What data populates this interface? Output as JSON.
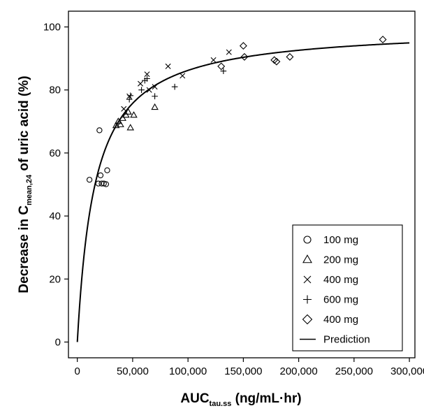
{
  "chart_data": {
    "type": "scatter",
    "title": "",
    "xlabel": {
      "main": "AUC",
      "sub": "tau.ss",
      "rest": " (ng/mL·hr)"
    },
    "ylabel": {
      "pre": "Decrease in C",
      "sub": "mean,24",
      "post": " of uric acid (%)"
    },
    "xlim": [
      -8000,
      305000
    ],
    "ylim": [
      -5,
      105
    ],
    "xticks": [
      0,
      50000,
      100000,
      150000,
      200000,
      250000,
      300000
    ],
    "xtick_labels": [
      "0",
      "50,000",
      "100,000",
      "150,000",
      "200,000",
      "250,000",
      "300,000"
    ],
    "yticks": [
      0,
      20,
      40,
      60,
      80,
      100
    ],
    "ytick_labels": [
      "0",
      "20",
      "40",
      "60",
      "80",
      "100"
    ],
    "grid": false,
    "legend_position": "bottom-right",
    "series": [
      {
        "name": "100 mg",
        "marker": "circle",
        "x": [
          11000,
          19000,
          20000,
          21000,
          22000,
          24000,
          26000,
          27000
        ],
        "y": [
          51.5,
          50.3,
          67.2,
          52.9,
          50.3,
          50.3,
          50.1,
          54.5
        ]
      },
      {
        "name": "200 mg",
        "marker": "triangle",
        "x": [
          35000,
          37000,
          39000,
          41000,
          44000,
          46000,
          48000,
          51000,
          70000
        ],
        "y": [
          68.7,
          70.0,
          69.0,
          71.0,
          72.0,
          73.0,
          68.0,
          72.0,
          74.5
        ]
      },
      {
        "name": "400 mg",
        "marker": "x",
        "x": [
          42000,
          47000,
          57000,
          63000,
          65000,
          70000,
          82000,
          95000,
          123000,
          137000
        ],
        "y": [
          74.0,
          78.0,
          82.0,
          85.0,
          80.0,
          81.0,
          87.5,
          84.5,
          89.5,
          92.0
        ]
      },
      {
        "name": "600 mg",
        "marker": "plus",
        "x": [
          47000,
          48000,
          58000,
          61000,
          63000,
          70000,
          88000,
          132000
        ],
        "y": [
          77.0,
          78.2,
          80.0,
          83.0,
          83.6,
          78.0,
          81.0,
          86.0
        ]
      },
      {
        "name": "400 mg",
        "marker": "diamond",
        "x": [
          130000,
          150000,
          151000,
          178000,
          180000,
          192000,
          276000
        ],
        "y": [
          87.5,
          94.0,
          90.5,
          89.5,
          89.0,
          90.5,
          96.0
        ]
      }
    ],
    "prediction": {
      "name": "Prediction",
      "model": "emax",
      "emax": 100,
      "ec50": 16000
    }
  }
}
